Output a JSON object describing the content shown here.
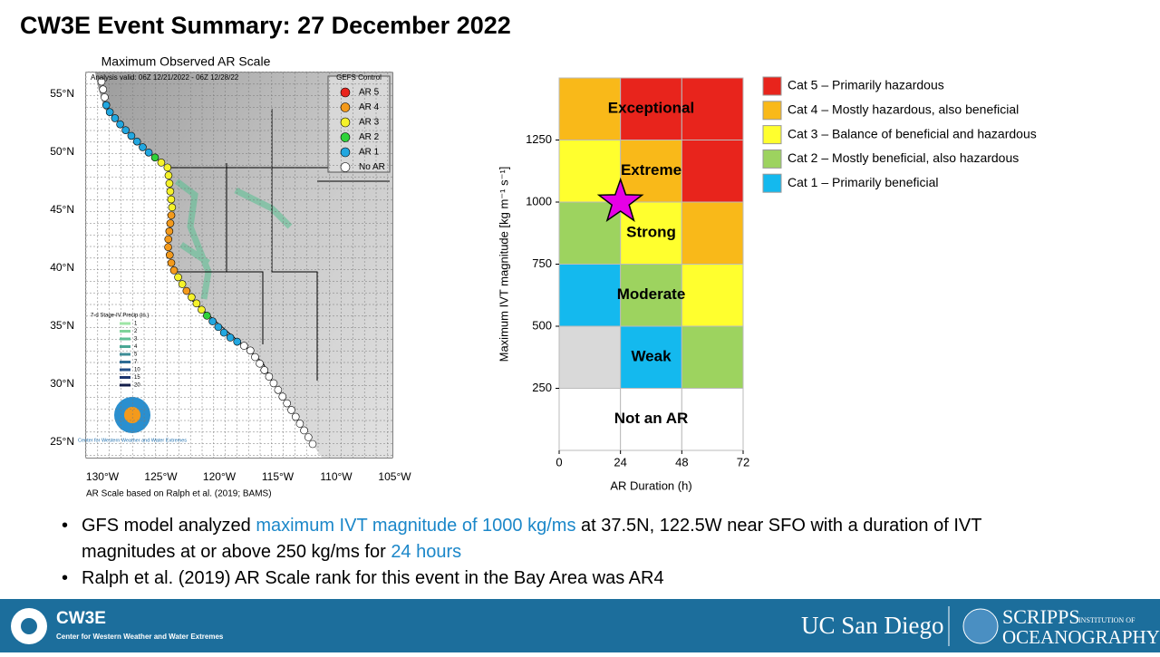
{
  "title": "CW3E Event Summary: 27 December 2022",
  "map": {
    "title": "Maximum Observed AR Scale",
    "subtitle": "Analysis valid: 06Z 12/21/2022 - 06Z 12/28/22",
    "legend": {
      "title": "GEFS Control",
      "items": [
        {
          "label": "AR 5",
          "color": "#e8241c"
        },
        {
          "label": "AR 4",
          "color": "#f39a1c"
        },
        {
          "label": "AR 3",
          "color": "#f5f22a"
        },
        {
          "label": "AR 2",
          "color": "#2fd23a"
        },
        {
          "label": "AR 1",
          "color": "#22a7e0"
        },
        {
          "label": "No AR",
          "color": "#ffffff"
        }
      ]
    },
    "lat_labels": [
      "55°N",
      "50°N",
      "45°N",
      "40°N",
      "35°N",
      "30°N",
      "25°N"
    ],
    "lon_labels": [
      "130°W",
      "125°W",
      "120°W",
      "115°W",
      "110°W",
      "105°W"
    ],
    "precip_legend": {
      "title": "7-d Stage-IV Precip (in.)",
      "items": [
        "1",
        "2",
        "3",
        "4",
        "5",
        "7",
        "10",
        "15",
        "20"
      ]
    },
    "logo_text": "Center for Western Weather and Water Extremes",
    "footnote": "AR Scale based on Ralph et al. (2019; BAMS)"
  },
  "chart_data": {
    "type": "ar_scale",
    "xlabel": "AR Duration (h)",
    "ylabel": "Maximum IVT magnitude [kg m⁻¹ s⁻¹]",
    "xlim": [
      0,
      72
    ],
    "ylim": [
      0,
      1500
    ],
    "xticks": [
      0,
      24,
      48,
      72
    ],
    "yticks": [
      250,
      500,
      750,
      1000,
      1250
    ],
    "cell_colors": [
      [
        "#ffffff",
        "#ffffff",
        "#ffffff"
      ],
      [
        "#d9d9d9",
        "#14b9ee",
        "#9dd35f"
      ],
      [
        "#14b9ee",
        "#9dd35f",
        "#ffff2e"
      ],
      [
        "#9dd35f",
        "#ffff2e",
        "#f9b919"
      ],
      [
        "#ffff2e",
        "#f9b919",
        "#e8241c"
      ],
      [
        "#f9b919",
        "#e8241c",
        "#e8241c"
      ]
    ],
    "zone_labels": [
      "Not an AR",
      "Weak",
      "Moderate",
      "Strong",
      "Extreme",
      "Exceptional"
    ],
    "point": {
      "x": 24,
      "y": 1000,
      "color": "#e600e6"
    },
    "legend": [
      {
        "label": "Cat 5 – Primarily hazardous",
        "color": "#e8241c"
      },
      {
        "label": "Cat 4 – Mostly hazardous, also beneficial",
        "color": "#f9b919"
      },
      {
        "label": "Cat 3 – Balance of beneficial and hazardous",
        "color": "#ffff2e"
      },
      {
        "label": "Cat 2 – Mostly beneficial, also hazardous",
        "color": "#9dd35f"
      },
      {
        "label": "Cat 1 – Primarily beneficial",
        "color": "#14b9ee"
      }
    ]
  },
  "bullets": [
    [
      "GFS model analyzed ",
      "maximum IVT magnitude of 1000 kg/ms",
      " at 37.5N, 122.5W near SFO with a duration of IVT magnitudes at or above 250 kg/ms for ",
      "24 hours"
    ],
    [
      "Ralph et al. (2019) AR Scale rank for this event in the Bay Area was AR4"
    ]
  ],
  "footer": {
    "cw3e": "CW3E",
    "cw3e_sub": "Center for Western Weather and Water Extremes",
    "ucsd": "UC San Diego",
    "scripps": "SCRIPPS",
    "institution": "INSTITUTION OF",
    "oceanography": "OCEANOGRAPHY"
  }
}
